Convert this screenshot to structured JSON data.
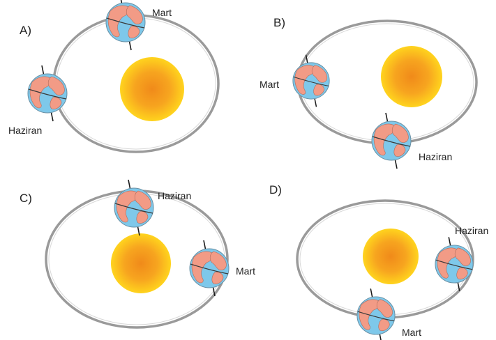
{
  "options": [
    {
      "letter": "A)",
      "earths": [
        {
          "month": "Mart"
        },
        {
          "month": "Haziran"
        }
      ]
    },
    {
      "letter": "B)",
      "earths": [
        {
          "month": "Mart"
        },
        {
          "month": "Haziran"
        }
      ]
    },
    {
      "letter": "C)",
      "earths": [
        {
          "month": "Haziran"
        },
        {
          "month": "Mart"
        }
      ]
    },
    {
      "letter": "D)",
      "earths": [
        {
          "month": "Haziran"
        },
        {
          "month": "Mart"
        }
      ]
    }
  ],
  "colors": {
    "orbit": "#9a9a9a",
    "ocean": "#7ec8ea",
    "land": "#f29b86",
    "axis": "#1a1a1a",
    "sun_core": "#f08a1a",
    "sun_edge": "#ffd21e"
  }
}
